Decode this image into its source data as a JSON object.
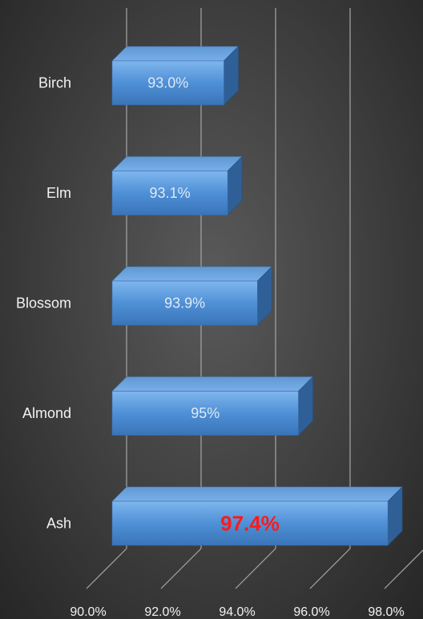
{
  "chart_data": {
    "type": "bar",
    "orientation": "horizontal",
    "style": "3d",
    "categories": [
      "Birch",
      "Elm",
      "Blossom",
      "Almond",
      "Ash"
    ],
    "values": [
      93.0,
      93.1,
      93.9,
      95.0,
      97.4
    ],
    "data_labels": [
      "93.0%",
      "93.1%",
      "93.9%",
      "95%",
      "97.4%"
    ],
    "highlight_index": 4,
    "x_ticks": [
      "90.0%",
      "92.0%",
      "94.0%",
      "96.0%",
      "98.0%"
    ],
    "xlim": [
      90,
      98
    ],
    "grid": true,
    "legend": "none",
    "colors": {
      "bar_front": "#4f90d6",
      "bar_top": "#6da7e6",
      "bar_side": "#2f5f97",
      "highlight_label": "#ff1a1a",
      "grid": "#a6a6a6",
      "text": "#f2f2f2"
    }
  }
}
